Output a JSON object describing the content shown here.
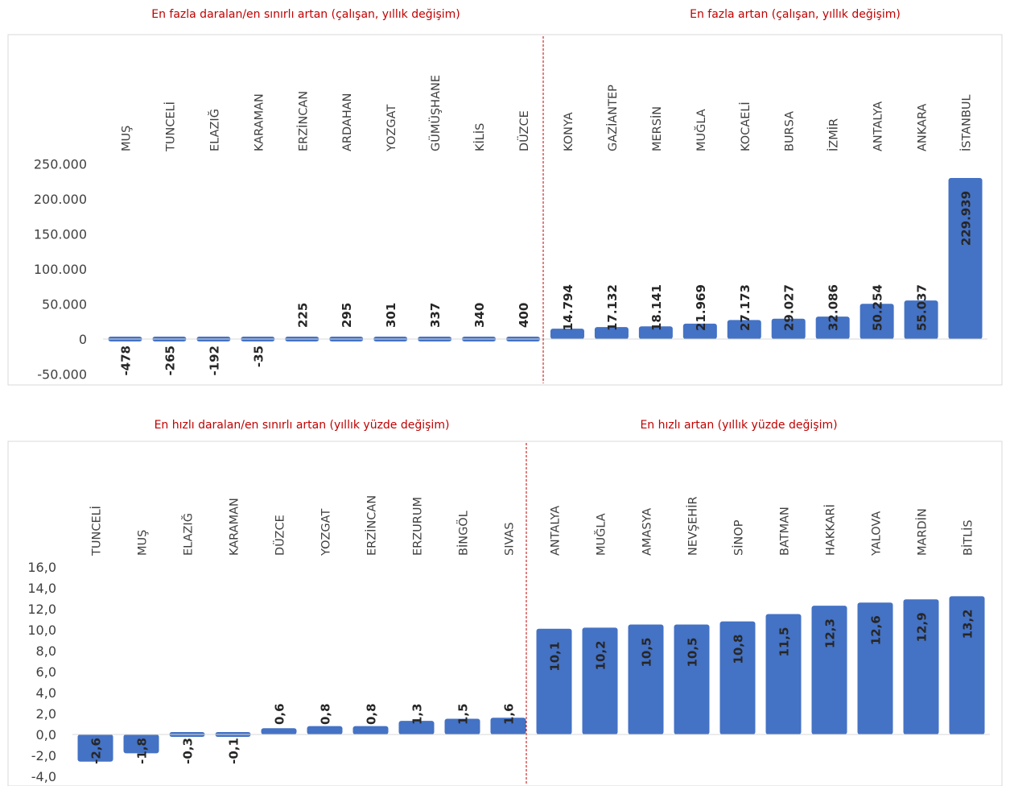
{
  "chart_data": [
    {
      "type": "bar",
      "left_title": "En fazla daralan/en sınırlı artan (çalışan, yıllık değişim)",
      "right_title": "En fazla artan (çalışan, yıllık değişim)",
      "categories": [
        "MUŞ",
        "TUNCELİ",
        "ELAZIĞ",
        "KARAMAN",
        "ERZİNCAN",
        "ARDAHAN",
        "YOZGAT",
        "GÜMÜŞHANE",
        "KİLİS",
        "DÜZCE",
        "KONYA",
        "GAZİANTEP",
        "MERSİN",
        "MUĞLA",
        "KOCAELİ",
        "BURSA",
        "İZMİR",
        "ANTALYA",
        "ANKARA",
        "İSTANBUL"
      ],
      "values": [
        -478,
        -265,
        -192,
        -35,
        225,
        295,
        301,
        337,
        340,
        400,
        14794,
        17132,
        18141,
        21969,
        27173,
        29027,
        32086,
        50254,
        55037,
        229939
      ],
      "labels": [
        "-478",
        "-265",
        "-192",
        "-35",
        "225",
        "295",
        "301",
        "337",
        "340",
        "400",
        "14.794",
        "17.132",
        "18.141",
        "21.969",
        "27.173",
        "29.027",
        "32.086",
        "50.254",
        "55.037",
        "229.939"
      ],
      "ylim": [
        -50000,
        250000
      ],
      "yticks": [
        250000,
        200000,
        150000,
        100000,
        50000,
        0,
        -50000
      ],
      "ytick_labels": [
        "250.000",
        "200.000",
        "150.000",
        "100.000",
        "50.000",
        "0",
        "-50.000"
      ],
      "bar_color": "#4472c4",
      "divider_color": "#c00000"
    },
    {
      "type": "bar",
      "left_title": "En hızlı daralan/en sınırlı artan (yıllık yüzde değişim)",
      "right_title": "En hızlı artan (yıllık yüzde değişim)",
      "categories": [
        "TUNCELİ",
        "MUŞ",
        "ELAZIĞ",
        "KARAMAN",
        "DÜZCE",
        "YOZGAT",
        "ERZİNCAN",
        "ERZURUM",
        "BİNGÖL",
        "SIVAS",
        "ANTALYA",
        "MUĞLA",
        "AMASYA",
        "NEVŞEHİR",
        "SİNOP",
        "BATMAN",
        "HAKKARİ",
        "YALOVA",
        "MARDİN",
        "BİTLİS"
      ],
      "values": [
        -2.6,
        -1.8,
        -0.3,
        -0.1,
        0.6,
        0.8,
        0.8,
        1.3,
        1.5,
        1.6,
        10.1,
        10.2,
        10.5,
        10.5,
        10.8,
        11.5,
        12.3,
        12.6,
        12.9,
        13.2
      ],
      "labels": [
        "-2,6",
        "-1,8",
        "-0,3",
        "-0,1",
        "0,6",
        "0,8",
        "0,8",
        "1,3",
        "1,5",
        "1,6",
        "10,1",
        "10,2",
        "10,5",
        "10,5",
        "10,8",
        "11,5",
        "12,3",
        "12,6",
        "12,9",
        "13,2"
      ],
      "ylim": [
        -4,
        16
      ],
      "yticks": [
        16,
        14,
        12,
        10,
        8,
        6,
        4,
        2,
        0,
        -2,
        -4
      ],
      "ytick_labels": [
        "16,0",
        "14,0",
        "12,0",
        "10,0",
        "8,0",
        "6,0",
        "4,0",
        "2,0",
        "0,0",
        "-2,0",
        "-4,0"
      ],
      "bar_color": "#4472c4",
      "divider_color": "#c00000"
    }
  ]
}
